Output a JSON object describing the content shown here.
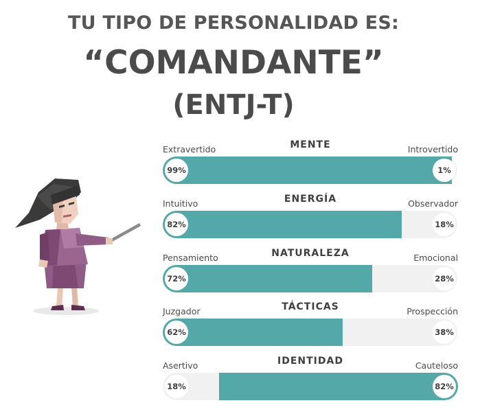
{
  "header": {
    "line1": "TU TIPO DE PERSONALIDAD ES:",
    "line2": "“COMANDANTE”",
    "line3": "(ENTJ-T)"
  },
  "illustration": "commander-woman-pointer-illustration",
  "colors": {
    "accent": "#55a8a8",
    "track": "#f1f1f1"
  },
  "scales": [
    {
      "title": "MENTE",
      "left_label": "Extravertido",
      "right_label": "Introvertido",
      "left_pct": "99%",
      "right_pct": "1%",
      "dominant": "left",
      "value": 0.99
    },
    {
      "title": "ENERGÍA",
      "left_label": "Intuitivo",
      "right_label": "Observador",
      "left_pct": "82%",
      "right_pct": "18%",
      "dominant": "left",
      "value": 0.82
    },
    {
      "title": "NATURALEZA",
      "left_label": "Pensamiento",
      "right_label": "Emocional",
      "left_pct": "72%",
      "right_pct": "28%",
      "dominant": "left",
      "value": 0.72
    },
    {
      "title": "TÁCTICAS",
      "left_label": "Juzgador",
      "right_label": "Prospección",
      "left_pct": "62%",
      "right_pct": "38%",
      "dominant": "left",
      "value": 0.62
    },
    {
      "title": "IDENTIDAD",
      "left_label": "Asertivo",
      "right_label": "Cauteloso",
      "left_pct": "18%",
      "right_pct": "82%",
      "dominant": "right",
      "value": 0.82
    }
  ]
}
